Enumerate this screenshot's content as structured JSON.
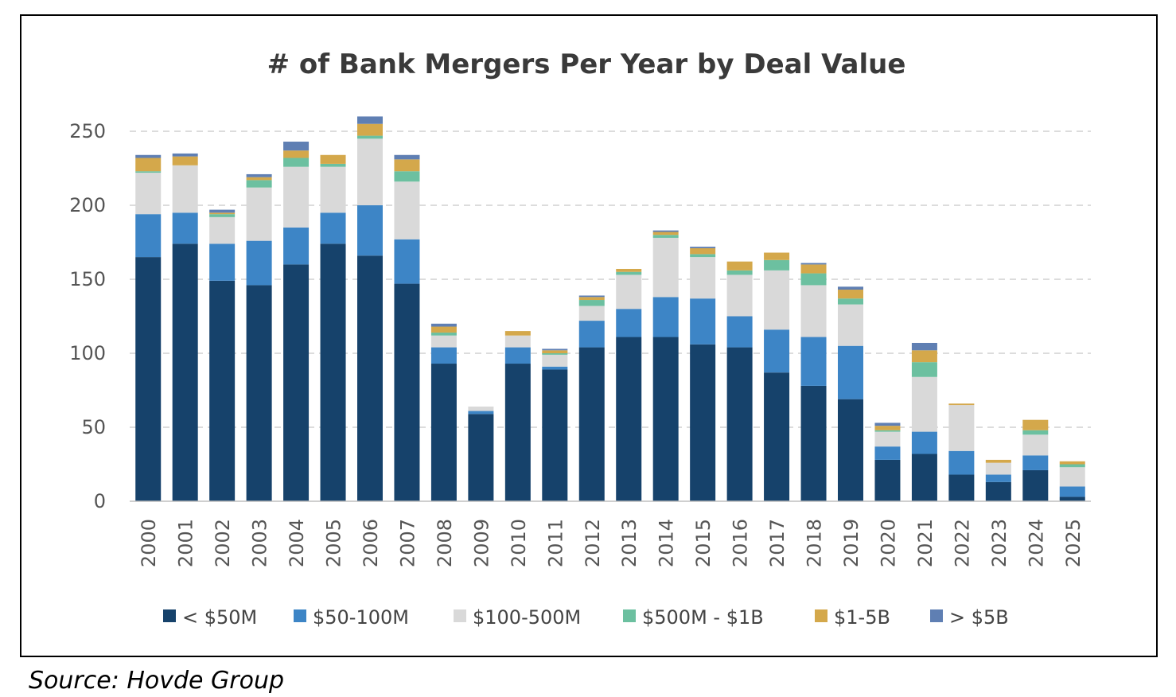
{
  "chart_data": {
    "type": "bar",
    "stacked": true,
    "title": "# of Bank Mergers Per Year by Deal Value",
    "xlabel": "",
    "ylabel": "",
    "ylim": [
      0,
      260
    ],
    "yticks": [
      0,
      50,
      100,
      150,
      200,
      250
    ],
    "grid": true,
    "legend_position": "bottom",
    "categories": [
      "2000",
      "2001",
      "2002",
      "2003",
      "2004",
      "2005",
      "2006",
      "2007",
      "2008",
      "2009",
      "2010",
      "2011",
      "2012",
      "2013",
      "2014",
      "2015",
      "2016",
      "2017",
      "2018",
      "2019",
      "2020",
      "2021",
      "2022",
      "2023",
      "2024",
      "2025"
    ],
    "series": [
      {
        "name": "< $50M",
        "color": "#16426B",
        "values": [
          165,
          174,
          149,
          146,
          160,
          174,
          166,
          147,
          93,
          59,
          93,
          89,
          104,
          111,
          111,
          106,
          104,
          87,
          78,
          69,
          28,
          32,
          18,
          13,
          21,
          3
        ]
      },
      {
        "name": "$50-100M",
        "color": "#3D85C6",
        "values": [
          29,
          21,
          25,
          30,
          25,
          21,
          34,
          30,
          11,
          2,
          11,
          2,
          18,
          19,
          27,
          31,
          21,
          29,
          33,
          36,
          9,
          15,
          16,
          5,
          10,
          7
        ]
      },
      {
        "name": "$100-500M",
        "color": "#D9D9D9",
        "values": [
          28,
          32,
          18,
          36,
          41,
          31,
          45,
          39,
          8,
          3,
          8,
          8,
          10,
          23,
          40,
          28,
          28,
          40,
          35,
          28,
          10,
          37,
          31,
          8,
          14,
          13
        ]
      },
      {
        "name": "$500M - $1B",
        "color": "#6CC0A0",
        "values": [
          1,
          0,
          2,
          5,
          6,
          2,
          2,
          7,
          2,
          0,
          0,
          1,
          4,
          2,
          2,
          2,
          3,
          7,
          8,
          4,
          1,
          10,
          0,
          0,
          3,
          2
        ]
      },
      {
        "name": "$1-5B",
        "color": "#D4A84B",
        "values": [
          9,
          6,
          1,
          2,
          5,
          6,
          8,
          8,
          4,
          0,
          3,
          2,
          2,
          2,
          2,
          4,
          6,
          5,
          6,
          6,
          3,
          8,
          1,
          2,
          7,
          2
        ]
      },
      {
        "name": "> $5B",
        "color": "#5F7FB3",
        "values": [
          2,
          2,
          2,
          2,
          6,
          0,
          5,
          3,
          2,
          0,
          0,
          1,
          1,
          0,
          1,
          1,
          0,
          0,
          1,
          2,
          2,
          5,
          0,
          0,
          0,
          0
        ]
      }
    ]
  },
  "source": "Source:  Hovde Group"
}
